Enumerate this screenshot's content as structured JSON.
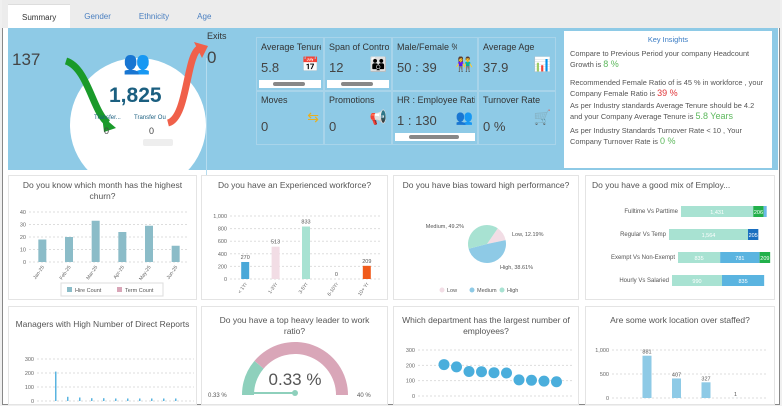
{
  "tabs": [
    "Summary",
    "Gender",
    "Ethnicity",
    "Age"
  ],
  "summary": {
    "hires": "137",
    "headcount": "1,825",
    "transfer_in_label": "Transfer...",
    "transfer_out_label": "Transfer Ou",
    "transfer_in": "0",
    "transfer_out": "0",
    "exits_label": "Exits",
    "exits": "0"
  },
  "kpis": [
    {
      "title": "Average Tenure",
      "value": "5.8",
      "icon": "calendar-icon"
    },
    {
      "title": "Span of Control",
      "value": "12",
      "icon": "org-chart-icon"
    },
    {
      "title": "Male/Female %",
      "value": "50 : 39",
      "icon": "gender-icon"
    },
    {
      "title": "Average Age",
      "value": "37.9",
      "icon": "presentation-icon"
    },
    {
      "title": "Moves",
      "value": "0",
      "icon": "swap-arrows-icon"
    },
    {
      "title": "Promotions",
      "value": "0",
      "icon": "megaphone-icon"
    },
    {
      "title": "HR : Employee Ratio",
      "value": "1 : 130",
      "icon": "team-icon"
    },
    {
      "title": "Turnover Rate",
      "value": "0 %",
      "icon": "cart-percent-icon"
    }
  ],
  "insights": {
    "title": "Key Insights",
    "l1": "Compare to Previous Period your company Headcount Growth is ",
    "v1": "8 %",
    "l2": "Recommended Female Ratio of is 45 % in workforce , your Company Female Ratio is ",
    "v2": "39 %",
    "l3": "As per Industry standards Average Tenure should be 4.2 and your Company Average Tenure is ",
    "v3": "5.8 Years",
    "l4": "As per Industry Standards Turnover Rate < 10 , Your Company Turnover Rate is ",
    "v4": "0 %",
    "colors": {
      "good": "#5cb85c",
      "bad": "#e0363a"
    }
  },
  "chart_data": [
    {
      "id": "churn",
      "type": "bar",
      "title": "Do you know which month has the highest churn?",
      "categories": [
        "Jan-25",
        "Feb-25",
        "Mar-25",
        "Apr-25",
        "May-25",
        "Jun-25"
      ],
      "series": [
        {
          "name": "Hire Count",
          "values": [
            18,
            20,
            33,
            24,
            29,
            13
          ],
          "color": "#8bbcc8"
        },
        {
          "name": "Term Count",
          "values": [
            0,
            0,
            0,
            0,
            0,
            0
          ],
          "color": "#d9a6b8"
        }
      ],
      "ylim": [
        0,
        40
      ],
      "yticks": [
        "0",
        "10",
        "20",
        "30",
        "40"
      ],
      "legend": "bottom",
      "grid": true
    },
    {
      "id": "experience",
      "type": "bar",
      "title": "Do you have an Experienced workforce?",
      "categories": [
        "< 1Yr",
        "1-3Yr",
        "3-5Yr",
        "6-10Yr",
        "10+ Yr"
      ],
      "values": [
        270,
        513,
        833,
        0,
        209
      ],
      "colors": [
        "#4aa8d8",
        "#f2dde5",
        "#a8e2d2",
        "#999999",
        "#f05a1a"
      ],
      "ylim": [
        0,
        1000
      ],
      "yticks": [
        "0",
        "200",
        "400",
        "600",
        "800",
        "1,000"
      ],
      "grid": true
    },
    {
      "id": "performance",
      "type": "pie",
      "title": "Do you have bias toward high performance?",
      "slices": [
        {
          "name": "Low",
          "value": 12.19,
          "label": "Low, 12.19%",
          "color": "#f2dde5"
        },
        {
          "name": "Medium",
          "value": 49.2,
          "label": "Medium, 49.2%",
          "color": "#8ecae6"
        },
        {
          "name": "High",
          "value": 38.61,
          "label": "High, 38.61%",
          "color": "#a8e2d2"
        }
      ],
      "legend": "bottom"
    },
    {
      "id": "mix",
      "type": "bar",
      "orientation": "horizontal",
      "stacked": true,
      "title": "Do you have a good mix of Employ...",
      "categories": [
        "Fulltime Vs Parttime",
        "Regular Vs Temp",
        "Exempt Vs Non-Exempt",
        "Hourly Vs Salaried"
      ],
      "rows": [
        [
          {
            "v": 1431,
            "c": "#a8e2d2"
          },
          {
            "v": 206,
            "c": "#22b04b"
          },
          {
            "v": 60,
            "c": "#6ab8e8"
          }
        ],
        [
          {
            "v": 1564,
            "c": "#a8e2d2"
          },
          {
            "v": 205,
            "c": "#1a6fc0"
          }
        ],
        [
          {
            "v": 835,
            "c": "#a8e2d2"
          },
          {
            "v": 781,
            "c": "#5ab4e0"
          },
          {
            "v": 209,
            "c": "#22b04b"
          }
        ],
        [
          {
            "v": 990,
            "c": "#a8e2d2"
          },
          {
            "v": 835,
            "c": "#5ab4e0"
          }
        ]
      ],
      "labels": [
        [
          "1,431",
          "206",
          ""
        ],
        [
          "1,564",
          "205"
        ],
        [
          "835",
          "781",
          "209"
        ],
        [
          "990",
          "835"
        ]
      ]
    },
    {
      "id": "managers",
      "type": "bar",
      "title": "Managers with High Number of Direct Reports",
      "values": [
        210,
        30,
        25,
        20,
        20,
        18,
        18,
        18,
        18,
        18,
        18
      ],
      "color": "#5ab4e0",
      "ylim": [
        0,
        300
      ],
      "yticks": [
        "0",
        "100",
        "200",
        "300"
      ],
      "grid": true
    },
    {
      "id": "leader",
      "type": "gauge",
      "title": "Do you have a top heavy leader to work ratio?",
      "value": 0.33,
      "display": "0.33 %",
      "min_label": "0.33 %",
      "max_label": "40 %",
      "max": 40,
      "colors": {
        "band": "#8ed0bc",
        "track": "#d9a6b8"
      }
    },
    {
      "id": "department",
      "type": "scatter",
      "title": "Which department has the largest number of employees?",
      "values": [
        205,
        190,
        160,
        158,
        152,
        150,
        105,
        103,
        97,
        93
      ],
      "color": "#4aaedc",
      "ylim": [
        0,
        300
      ],
      "yticks": [
        "0",
        "100",
        "200",
        "300"
      ],
      "grid": true
    },
    {
      "id": "location",
      "type": "bar",
      "title": "Are some work location over staffed?",
      "values": [
        881,
        407,
        327,
        1
      ],
      "labels": [
        "881",
        "407",
        "327",
        "1"
      ],
      "color": "#8ecae6",
      "ylim": [
        0,
        1000
      ],
      "yticks": [
        "0",
        "500",
        "1,000"
      ],
      "grid": true
    }
  ]
}
